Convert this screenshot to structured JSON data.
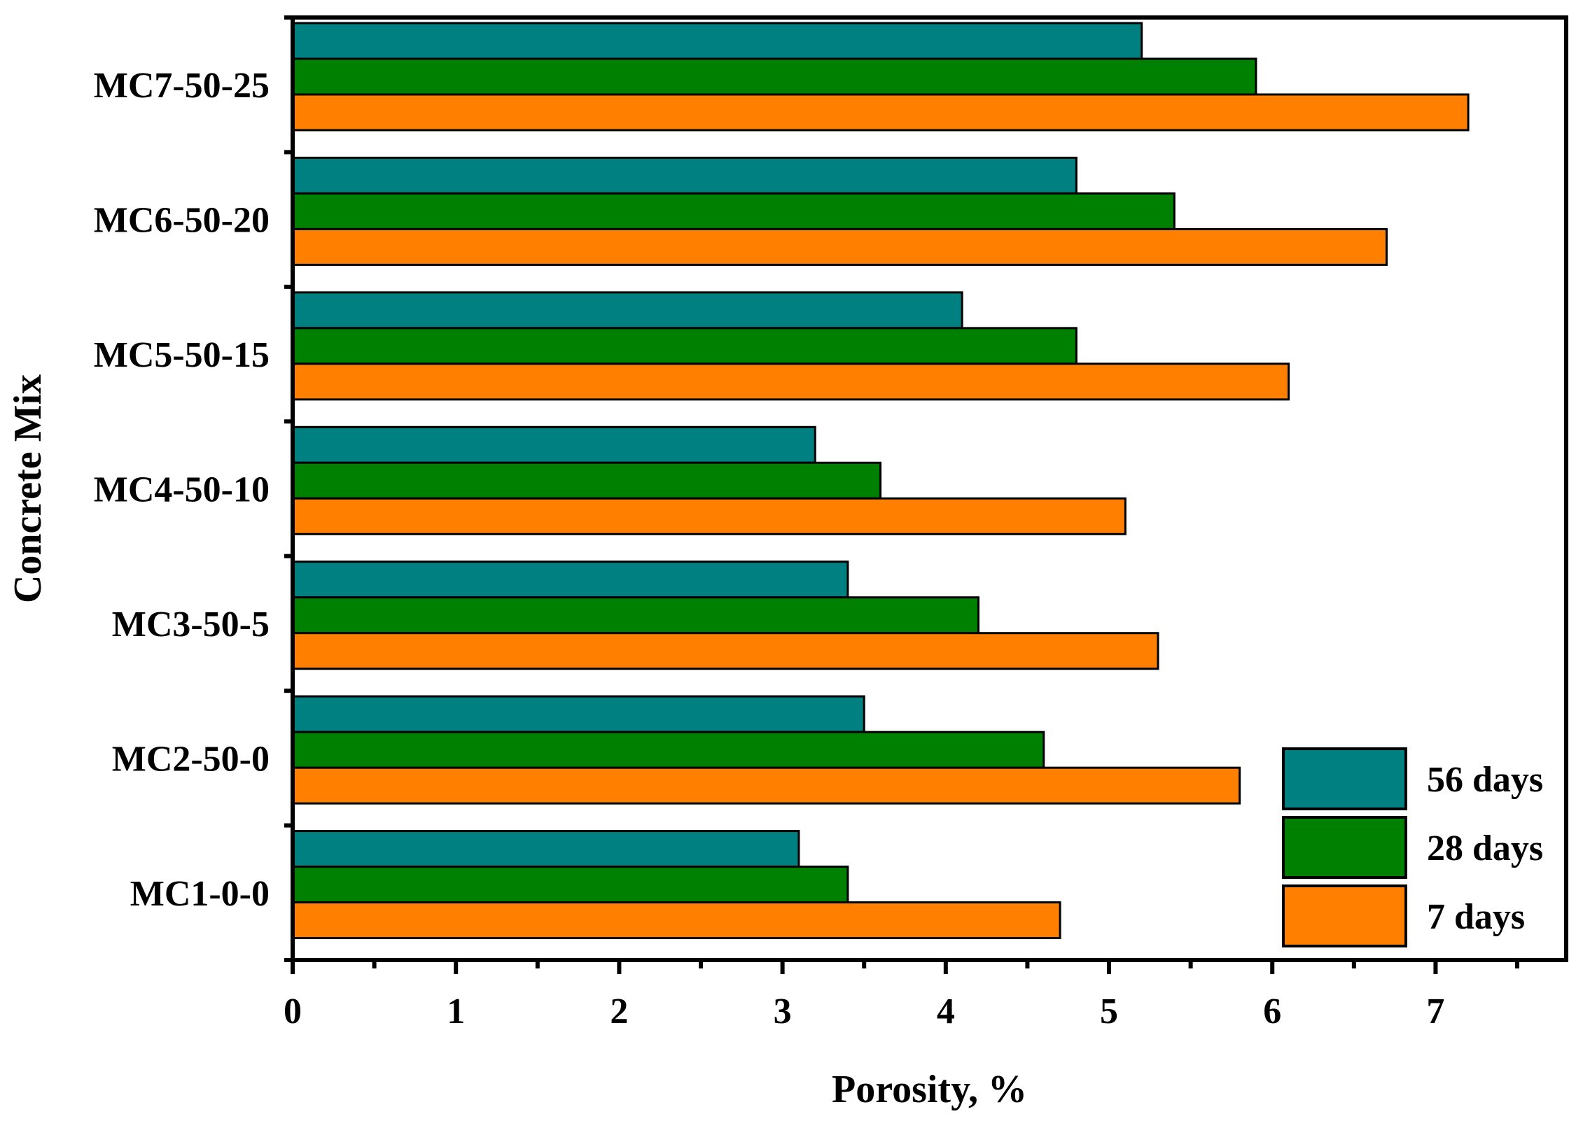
{
  "chart_data": {
    "type": "bar",
    "orientation": "horizontal",
    "title": "",
    "xlabel": "Porosity, %",
    "ylabel": "Concrete Mix",
    "xlim": [
      0,
      7.8
    ],
    "xticks": [
      "0",
      "1",
      "2",
      "3",
      "4",
      "5",
      "6",
      "7"
    ],
    "grid": false,
    "legend_position": "bottom-right",
    "categories": [
      "MC1-0-0",
      "MC2-50-0",
      "MC3-50-5",
      "MC4-50-10",
      "MC5-50-15",
      "MC6-50-20",
      "MC7-50-25"
    ],
    "series": [
      {
        "name": "56 days",
        "color": "#008080",
        "values": [
          3.1,
          3.5,
          3.4,
          3.2,
          4.1,
          4.8,
          5.2
        ]
      },
      {
        "name": "28 days",
        "color": "#008000",
        "values": [
          3.4,
          4.6,
          4.2,
          3.6,
          4.8,
          5.4,
          5.9
        ]
      },
      {
        "name": "7 days",
        "color": "#ff8000",
        "values": [
          4.7,
          5.8,
          5.3,
          5.1,
          6.1,
          6.7,
          7.2
        ]
      }
    ]
  }
}
